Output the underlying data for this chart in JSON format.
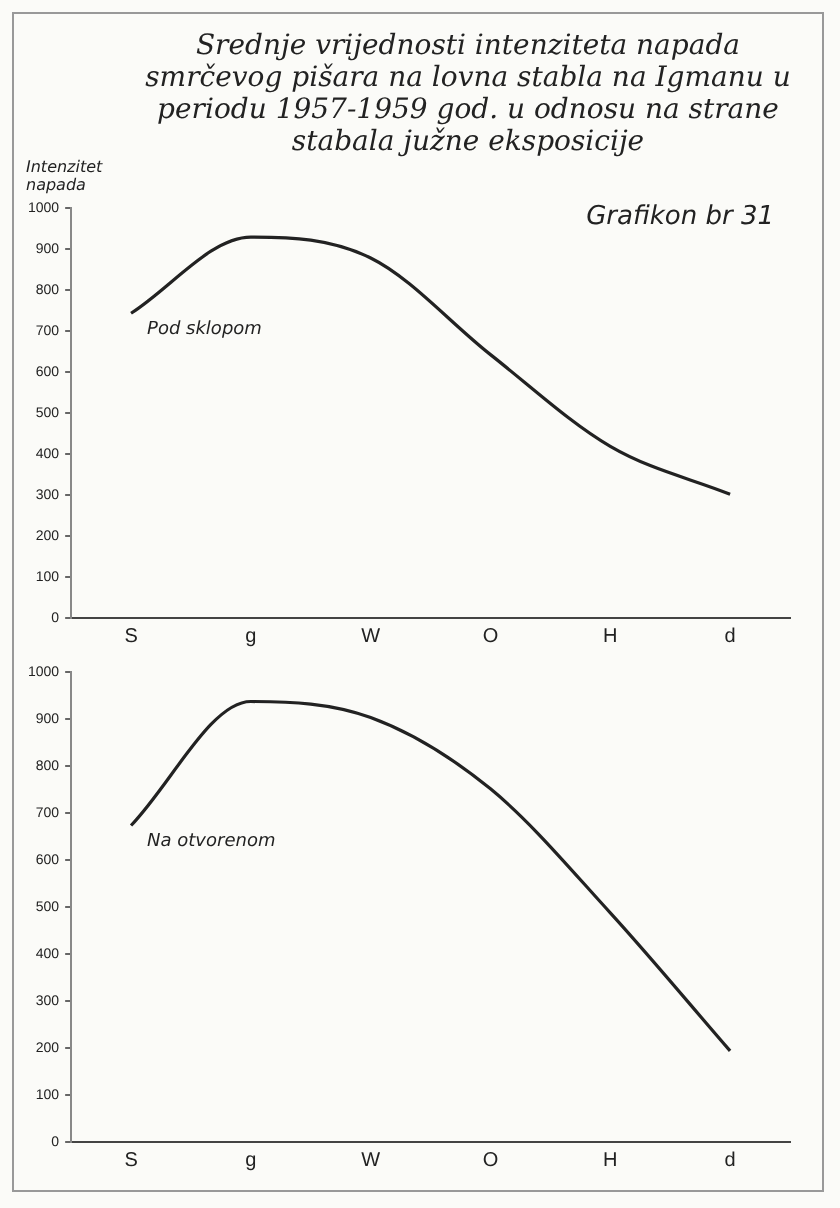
{
  "chart_data": [
    {
      "type": "line",
      "title": "Srednje vrijednosti intenziteta napada smrčevog pišara na lovna stabla na Igmanu u periodu 1957-1959 god. u odnosu na strane stabala južne eksposicije",
      "ylabel": "Intenzitet napada",
      "annotations": [
        "Grafikon br 31"
      ],
      "categories": [
        "S",
        "g",
        "W",
        "O",
        "H",
        "d"
      ],
      "series": [
        {
          "name": "Pod sklopom",
          "color": "#222222",
          "values": [
            744,
            930,
            879,
            643,
            419,
            302
          ]
        }
      ],
      "ylim": [
        0,
        1000
      ],
      "yticks": [
        0,
        100,
        200,
        300,
        400,
        500,
        600,
        700,
        800,
        900,
        1000
      ],
      "grid": false,
      "marker": "none",
      "line_style": "solid"
    },
    {
      "type": "line",
      "categories": [
        "S",
        "g",
        "W",
        "O",
        "H",
        "d"
      ],
      "series": [
        {
          "name": "Na otvorenom",
          "color": "#222222",
          "values": [
            674,
            938,
            904,
            752,
            488,
            194
          ]
        }
      ],
      "ylim": [
        0,
        1000
      ],
      "yticks": [
        0,
        100,
        200,
        300,
        400,
        500,
        600,
        700,
        800,
        900,
        1000
      ],
      "grid": false,
      "marker": "none",
      "line_style": "solid"
    }
  ]
}
